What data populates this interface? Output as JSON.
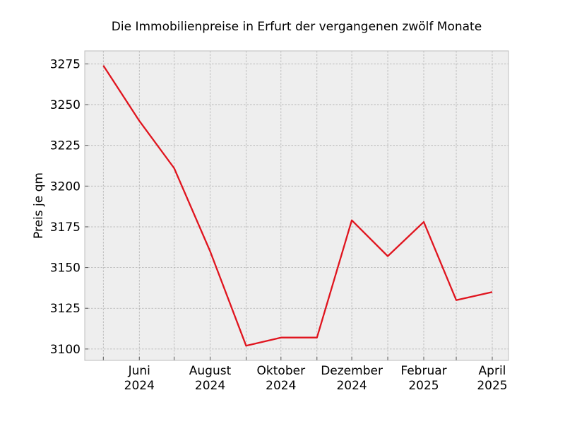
{
  "chart_data": {
    "type": "line",
    "title": "Die Immobilienpreise in Erfurt der vergangenen zwölf Monate",
    "xlabel": "",
    "ylabel": "Preis je qm",
    "x": [
      "2024-05",
      "2024-06",
      "2024-07",
      "2024-08",
      "2024-09",
      "2024-10",
      "2024-11",
      "2024-12",
      "2025-01",
      "2025-02",
      "2025-03",
      "2025-04"
    ],
    "series": [
      {
        "values": [
          3274,
          3240,
          3211,
          3160,
          3102,
          3107,
          3107,
          3179,
          3157,
          3178,
          3130,
          3135
        ],
        "color": "#e0141e"
      }
    ],
    "xticks": [
      {
        "x": "2024-06",
        "label": [
          "Juni",
          "2024"
        ]
      },
      {
        "x": "2024-08",
        "label": [
          "August",
          "2024"
        ]
      },
      {
        "x": "2024-10",
        "label": [
          "Oktober",
          "2024"
        ]
      },
      {
        "x": "2024-12",
        "label": [
          "Dezember",
          "2024"
        ]
      },
      {
        "x": "2025-02",
        "label": [
          "Februar",
          "2025"
        ]
      },
      {
        "x": "2025-04",
        "label": [
          "April",
          "2025"
        ]
      }
    ],
    "yticks": [
      3100,
      3125,
      3150,
      3175,
      3200,
      3225,
      3250,
      3275
    ],
    "xlim": [
      "2024-04-15",
      "2025-04-15"
    ],
    "ylim": [
      3093,
      3283
    ],
    "grid": true,
    "background": "#eeeeee",
    "grid_color": "#b0b0b0"
  }
}
